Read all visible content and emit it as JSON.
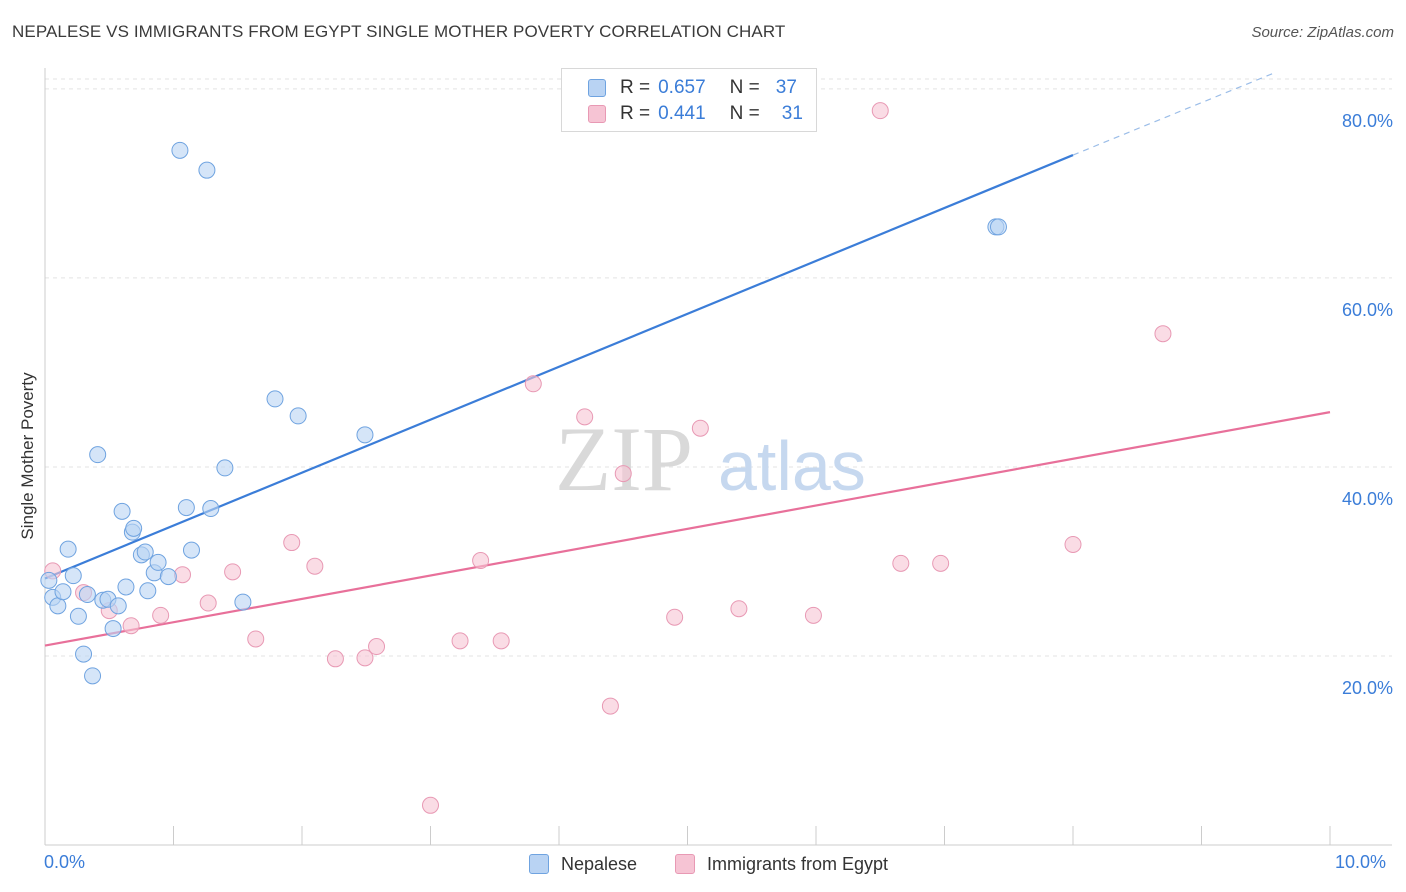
{
  "title": "NEPALESE VS IMMIGRANTS FROM EGYPT SINGLE MOTHER POVERTY CORRELATION CHART",
  "source": "Source: ZipAtlas.com",
  "watermark": {
    "zip": "ZIP",
    "atlas": "atlas"
  },
  "legend": {
    "series1": {
      "r_label": "R =",
      "r_value": "0.657",
      "n_label": "N =",
      "n_value": "37"
    },
    "series2": {
      "r_label": "R =",
      "r_value": "0.441",
      "n_label": "N =",
      "n_value": "31"
    }
  },
  "colors": {
    "blue": "#3b7dd8",
    "blue_fill": "#b9d3f3",
    "pink": "#e8709a",
    "pink_fill": "#f6c4d4",
    "grid": "#e3e3e3"
  },
  "chart_data": {
    "type": "scatter",
    "title": "NEPALESE VS IMMIGRANTS FROM EGYPT SINGLE MOTHER POVERTY CORRELATION CHART",
    "xlabel": "",
    "ylabel": "Single Mother Poverty",
    "xlim": [
      0,
      10
    ],
    "ylim": [
      0,
      82
    ],
    "x_tick_labels": [
      "0.0%",
      "10.0%"
    ],
    "y_ticks": [
      20,
      40,
      60,
      80
    ],
    "y_tick_labels": [
      "20.0%",
      "40.0%",
      "60.0%",
      "80.0%"
    ],
    "series": [
      {
        "name": "Nepalese",
        "color": "#3b7dd8",
        "points": [
          [
            0.03,
            28.0
          ],
          [
            0.06,
            26.2
          ],
          [
            0.1,
            25.3
          ],
          [
            0.14,
            26.8
          ],
          [
            0.18,
            31.3
          ],
          [
            0.22,
            28.5
          ],
          [
            0.26,
            24.2
          ],
          [
            0.3,
            20.2
          ],
          [
            0.33,
            26.5
          ],
          [
            0.37,
            17.9
          ],
          [
            0.41,
            41.3
          ],
          [
            0.45,
            25.9
          ],
          [
            0.49,
            26.0
          ],
          [
            0.53,
            22.9
          ],
          [
            0.57,
            25.3
          ],
          [
            0.6,
            35.3
          ],
          [
            0.63,
            27.3
          ],
          [
            0.68,
            33.1
          ],
          [
            0.69,
            33.5
          ],
          [
            0.75,
            30.7
          ],
          [
            0.78,
            31.0
          ],
          [
            0.8,
            26.9
          ],
          [
            0.85,
            28.8
          ],
          [
            0.88,
            29.9
          ],
          [
            0.96,
            28.4
          ],
          [
            1.05,
            73.5
          ],
          [
            1.1,
            35.7
          ],
          [
            1.14,
            31.2
          ],
          [
            1.26,
            71.4
          ],
          [
            1.29,
            35.6
          ],
          [
            1.4,
            39.9
          ],
          [
            1.54,
            25.7
          ],
          [
            1.79,
            47.2
          ],
          [
            1.97,
            45.4
          ],
          [
            2.49,
            43.4
          ],
          [
            7.4,
            65.4
          ],
          [
            7.42,
            65.4
          ]
        ],
        "trend": {
          "x0": 0,
          "y0": 28.2,
          "x1": 8.0,
          "y1": 73.0,
          "dash_x1": 9.55,
          "dash_y1": 81.6
        }
      },
      {
        "name": "Immigrants from Egypt",
        "color": "#e8709a",
        "points": [
          [
            0.06,
            29.0
          ],
          [
            0.3,
            26.7
          ],
          [
            0.5,
            24.8
          ],
          [
            0.67,
            23.2
          ],
          [
            0.9,
            24.3
          ],
          [
            1.07,
            28.6
          ],
          [
            1.27,
            25.6
          ],
          [
            1.46,
            28.9
          ],
          [
            1.64,
            21.8
          ],
          [
            1.92,
            32.0
          ],
          [
            2.1,
            29.5
          ],
          [
            2.26,
            19.7
          ],
          [
            2.49,
            19.8
          ],
          [
            2.58,
            21.0
          ],
          [
            3.0,
            4.2
          ],
          [
            3.23,
            21.6
          ],
          [
            3.39,
            30.1
          ],
          [
            3.55,
            21.6
          ],
          [
            3.8,
            48.8
          ],
          [
            4.2,
            45.3
          ],
          [
            4.4,
            14.7
          ],
          [
            4.5,
            39.3
          ],
          [
            4.9,
            24.1
          ],
          [
            5.1,
            44.1
          ],
          [
            5.4,
            25.0
          ],
          [
            5.98,
            24.3
          ],
          [
            6.5,
            77.7
          ],
          [
            6.66,
            29.8
          ],
          [
            6.97,
            29.8
          ],
          [
            8.0,
            31.8
          ],
          [
            8.7,
            54.1
          ]
        ],
        "trend": {
          "x0": 0,
          "y0": 21.1,
          "x1": 10.0,
          "y1": 45.8
        }
      }
    ]
  },
  "bottom_legend": [
    "Nepalese",
    "Immigrants from Egypt"
  ]
}
